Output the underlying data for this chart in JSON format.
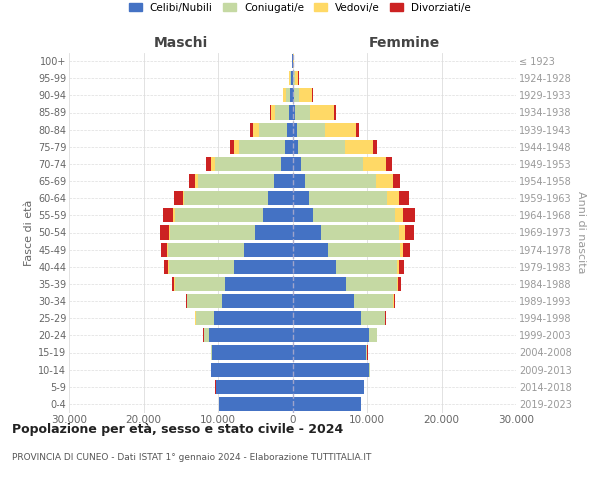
{
  "age_groups": [
    "0-4",
    "5-9",
    "10-14",
    "15-19",
    "20-24",
    "25-29",
    "30-34",
    "35-39",
    "40-44",
    "45-49",
    "50-54",
    "55-59",
    "60-64",
    "65-69",
    "70-74",
    "75-79",
    "80-84",
    "85-89",
    "90-94",
    "95-99",
    "100+"
  ],
  "birth_years": [
    "2019-2023",
    "2014-2018",
    "2009-2013",
    "2004-2008",
    "1999-2003",
    "1994-1998",
    "1989-1993",
    "1984-1988",
    "1979-1983",
    "1974-1978",
    "1969-1973",
    "1964-1968",
    "1959-1963",
    "1954-1958",
    "1949-1953",
    "1944-1948",
    "1939-1943",
    "1934-1938",
    "1929-1933",
    "1924-1928",
    "≤ 1923"
  ],
  "colors": {
    "celibi": "#4472C4",
    "coniugati": "#C5D9A3",
    "vedovi": "#FFD966",
    "divorziati": "#CC2222"
  },
  "males_celibi": [
    9900,
    10300,
    10900,
    10800,
    11200,
    10500,
    9500,
    9000,
    7800,
    6500,
    5000,
    4000,
    3300,
    2500,
    1600,
    1000,
    700,
    500,
    300,
    180,
    80
  ],
  "males_coniugati": [
    10,
    30,
    60,
    150,
    700,
    2500,
    4600,
    6800,
    8800,
    10200,
    11500,
    11800,
    11200,
    10200,
    8800,
    6200,
    3800,
    1800,
    600,
    150,
    30
  ],
  "males_vedovi": [
    2,
    3,
    5,
    8,
    15,
    25,
    35,
    50,
    70,
    90,
    130,
    180,
    250,
    350,
    500,
    650,
    800,
    600,
    350,
    80,
    15
  ],
  "males_divorziati": [
    2,
    4,
    8,
    15,
    40,
    80,
    170,
    350,
    550,
    800,
    1150,
    1400,
    1100,
    850,
    650,
    550,
    350,
    180,
    80,
    40,
    8
  ],
  "females_nubili": [
    9200,
    9600,
    10300,
    9800,
    10300,
    9200,
    8200,
    7200,
    5800,
    4800,
    3800,
    2700,
    2200,
    1700,
    1200,
    800,
    550,
    400,
    200,
    120,
    60
  ],
  "females_coniugate": [
    15,
    40,
    80,
    250,
    1000,
    3200,
    5300,
    6800,
    8200,
    9600,
    10500,
    11000,
    10500,
    9500,
    8200,
    6200,
    3800,
    2000,
    650,
    150,
    30
  ],
  "females_vedove": [
    1,
    2,
    4,
    8,
    25,
    50,
    90,
    180,
    280,
    450,
    750,
    1100,
    1600,
    2300,
    3200,
    3800,
    4200,
    3200,
    1800,
    500,
    60
  ],
  "females_divorziate": [
    2,
    4,
    8,
    18,
    45,
    90,
    180,
    380,
    650,
    950,
    1300,
    1700,
    1300,
    950,
    750,
    550,
    350,
    180,
    80,
    40,
    8
  ],
  "xlim": 30000,
  "title": "Popolazione per età, sesso e stato civile - 2024",
  "subtitle": "PROVINCIA DI CUNEO - Dati ISTAT 1° gennaio 2024 - Elaborazione TUTTITALIA.IT",
  "ylabel_left": "Fasce di età",
  "ylabel_right": "Anni di nascita",
  "xlabel_left": "Maschi",
  "xlabel_right": "Femmine",
  "legend_labels": [
    "Celibi/Nubili",
    "Coniugati/e",
    "Vedovi/e",
    "Divorziati/e"
  ],
  "background_color": "#ffffff",
  "grid_color": "#cccccc",
  "xtick_vals": [
    -30000,
    -20000,
    -10000,
    0,
    10000,
    20000,
    30000
  ],
  "xtick_labels": [
    "30.000",
    "20.000",
    "10.000",
    "0",
    "10.000",
    "20.000",
    "30.000"
  ]
}
